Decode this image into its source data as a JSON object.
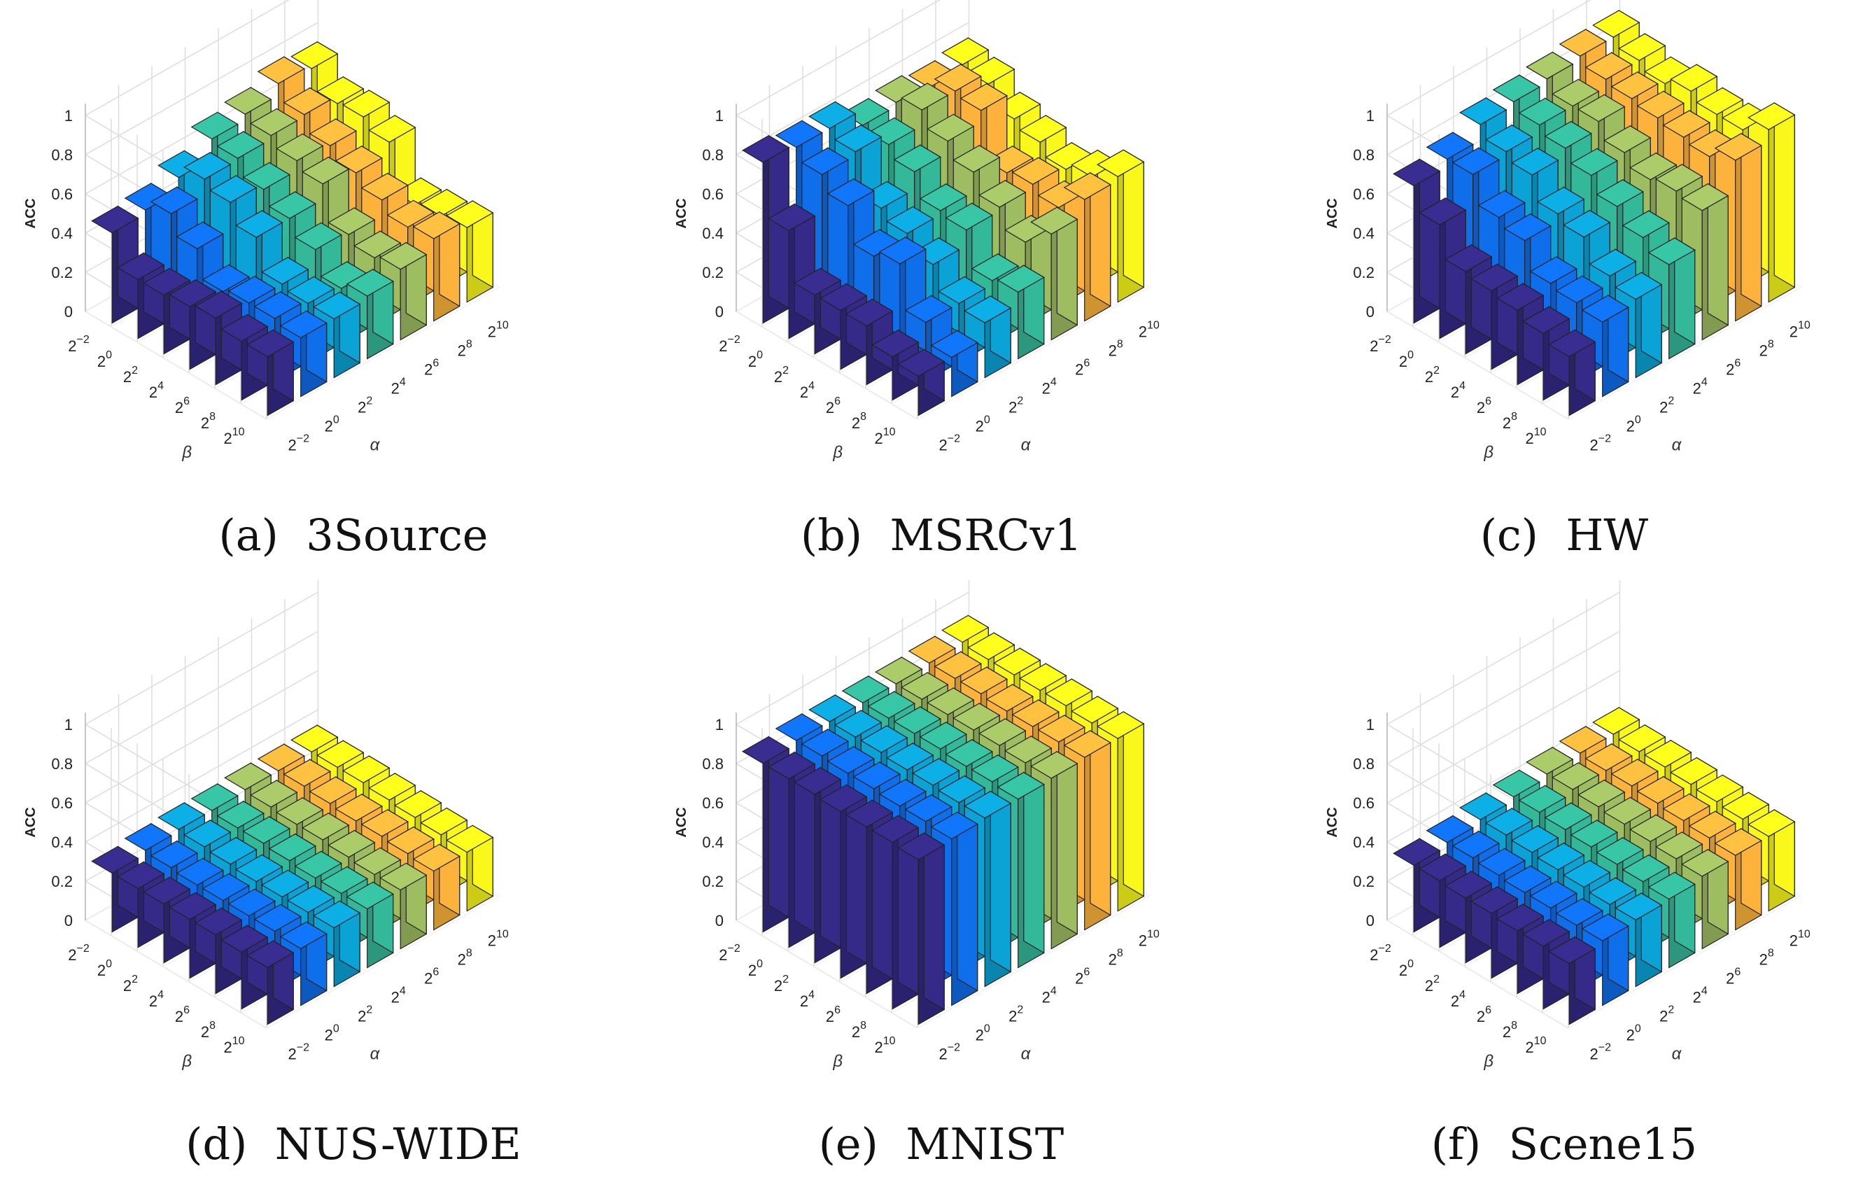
{
  "colors": {
    "palette": [
      "#352a87",
      "#0f6ee9",
      "#0ba3d6",
      "#34b89a",
      "#9ebd61",
      "#fdb33b",
      "#f9f81a"
    ],
    "grid": "#dddddd",
    "axis": "#333333",
    "edge": "#222222"
  },
  "axes_text": {
    "zlabel": "ACC",
    "xlabel": "α",
    "ylabel": "β",
    "ztick_labels": [
      "0",
      "0.2",
      "0.4",
      "0.6",
      "0.8",
      "1"
    ],
    "tick_base": "2",
    "tick_exponents": [
      "−2",
      "0",
      "2",
      "4",
      "6",
      "8",
      "10"
    ]
  },
  "chart_data": [
    {
      "type": "bar3d",
      "caption": "(a)  3Source",
      "title": "3Source",
      "xlabel": "α",
      "ylabel": "β",
      "zlabel": "ACC",
      "alpha": [
        "2^-2",
        "2^0",
        "2^2",
        "2^4",
        "2^6",
        "2^8",
        "2^10"
      ],
      "beta": [
        "2^-2",
        "2^0",
        "2^2",
        "2^4",
        "2^6",
        "2^8",
        "2^10"
      ],
      "zlim": [
        0,
        1
      ],
      "values": [
        [
          0.46,
          0.48,
          0.55,
          0.65,
          0.68,
          0.74,
          0.72
        ],
        [
          0.3,
          0.54,
          0.62,
          0.63,
          0.65,
          0.66,
          0.62
        ],
        [
          0.3,
          0.44,
          0.58,
          0.55,
          0.6,
          0.58,
          0.63
        ],
        [
          0.32,
          0.3,
          0.48,
          0.48,
          0.56,
          0.52,
          0.58
        ],
        [
          0.34,
          0.32,
          0.32,
          0.4,
          0.38,
          0.46,
          0.34
        ],
        [
          0.3,
          0.32,
          0.3,
          0.28,
          0.34,
          0.4,
          0.36
        ],
        [
          0.3,
          0.3,
          0.3,
          0.32,
          0.36,
          0.42,
          0.38
        ]
      ]
    },
    {
      "type": "bar3d",
      "caption": "(b)  MSRCv1",
      "title": "MSRCv1",
      "xlabel": "α",
      "ylabel": "β",
      "zlabel": "ACC",
      "alpha": [
        "2^-2",
        "2^0",
        "2^2",
        "2^4",
        "2^6",
        "2^8",
        "2^10"
      ],
      "beta": [
        "2^-2",
        "2^0",
        "2^2",
        "2^4",
        "2^6",
        "2^8",
        "2^10"
      ],
      "zlim": [
        0,
        1
      ],
      "values": [
        [
          0.82,
          0.8,
          0.8,
          0.72,
          0.74,
          0.72,
          0.74
        ],
        [
          0.55,
          0.74,
          0.76,
          0.7,
          0.78,
          0.78,
          0.72
        ],
        [
          0.3,
          0.66,
          0.55,
          0.64,
          0.7,
          0.76,
          0.62
        ],
        [
          0.3,
          0.48,
          0.5,
          0.52,
          0.62,
          0.52,
          0.58
        ],
        [
          0.3,
          0.52,
          0.42,
          0.5,
          0.52,
          0.54,
          0.52
        ],
        [
          0.22,
          0.3,
          0.3,
          0.32,
          0.42,
          0.5,
          0.56
        ],
        [
          0.2,
          0.2,
          0.28,
          0.34,
          0.54,
          0.62,
          0.64
        ]
      ]
    },
    {
      "type": "bar3d",
      "caption": "(c)  HW",
      "title": "HW",
      "xlabel": "α",
      "ylabel": "β",
      "zlabel": "ACC",
      "alpha": [
        "2^-2",
        "2^0",
        "2^2",
        "2^4",
        "2^6",
        "2^8",
        "2^10"
      ],
      "beta": [
        "2^-2",
        "2^0",
        "2^2",
        "2^4",
        "2^6",
        "2^8",
        "2^10"
      ],
      "zlim": [
        0,
        1
      ],
      "values": [
        [
          0.7,
          0.74,
          0.82,
          0.84,
          0.86,
          0.88,
          0.88
        ],
        [
          0.58,
          0.74,
          0.76,
          0.8,
          0.8,
          0.84,
          0.84
        ],
        [
          0.42,
          0.6,
          0.72,
          0.76,
          0.8,
          0.82,
          0.8
        ],
        [
          0.4,
          0.56,
          0.6,
          0.7,
          0.72,
          0.8,
          0.84
        ],
        [
          0.38,
          0.42,
          0.56,
          0.62,
          0.66,
          0.78,
          0.8
        ],
        [
          0.34,
          0.4,
          0.44,
          0.54,
          0.68,
          0.76,
          0.8
        ],
        [
          0.3,
          0.38,
          0.4,
          0.48,
          0.66,
          0.82,
          0.88
        ]
      ]
    },
    {
      "type": "bar3d",
      "caption": "(d)  NUS-WIDE",
      "title": "NUS-WIDE",
      "xlabel": "α",
      "ylabel": "β",
      "zlabel": "ACC",
      "alpha": [
        "2^-2",
        "2^0",
        "2^2",
        "2^4",
        "2^6",
        "2^8",
        "2^10"
      ],
      "beta": [
        "2^-2",
        "2^0",
        "2^2",
        "2^4",
        "2^6",
        "2^8",
        "2^10"
      ],
      "zlim": [
        0,
        1
      ],
      "values": [
        [
          0.3,
          0.32,
          0.33,
          0.33,
          0.34,
          0.34,
          0.34
        ],
        [
          0.3,
          0.31,
          0.32,
          0.32,
          0.33,
          0.34,
          0.34
        ],
        [
          0.3,
          0.3,
          0.31,
          0.32,
          0.32,
          0.33,
          0.34
        ],
        [
          0.3,
          0.3,
          0.3,
          0.31,
          0.32,
          0.32,
          0.33
        ],
        [
          0.3,
          0.3,
          0.3,
          0.3,
          0.31,
          0.32,
          0.32
        ],
        [
          0.29,
          0.3,
          0.3,
          0.3,
          0.3,
          0.31,
          0.31
        ],
        [
          0.29,
          0.29,
          0.3,
          0.3,
          0.3,
          0.3,
          0.3
        ]
      ]
    },
    {
      "type": "bar3d",
      "caption": "(e)  MNIST",
      "title": "MNIST",
      "xlabel": "α",
      "ylabel": "β",
      "zlabel": "ACC",
      "alpha": [
        "2^-2",
        "2^0",
        "2^2",
        "2^4",
        "2^6",
        "2^8",
        "2^10"
      ],
      "beta": [
        "2^-2",
        "2^0",
        "2^2",
        "2^4",
        "2^6",
        "2^8",
        "2^10"
      ],
      "zlim": [
        0,
        1
      ],
      "values": [
        [
          0.86,
          0.88,
          0.88,
          0.88,
          0.88,
          0.89,
          0.9
        ],
        [
          0.86,
          0.88,
          0.88,
          0.88,
          0.88,
          0.89,
          0.89
        ],
        [
          0.86,
          0.87,
          0.88,
          0.88,
          0.88,
          0.89,
          0.89
        ],
        [
          0.85,
          0.87,
          0.87,
          0.88,
          0.88,
          0.88,
          0.89
        ],
        [
          0.85,
          0.86,
          0.87,
          0.87,
          0.88,
          0.88,
          0.89
        ],
        [
          0.85,
          0.86,
          0.86,
          0.87,
          0.87,
          0.88,
          0.88
        ],
        [
          0.84,
          0.85,
          0.86,
          0.86,
          0.87,
          0.88,
          0.88
        ]
      ]
    },
    {
      "type": "bar3d",
      "caption": "(f)  Scene15",
      "title": "Scene15",
      "xlabel": "α",
      "ylabel": "β",
      "zlabel": "ACC",
      "alpha": [
        "2^-2",
        "2^0",
        "2^2",
        "2^4",
        "2^6",
        "2^8",
        "2^10"
      ],
      "beta": [
        "2^-2",
        "2^0",
        "2^2",
        "2^4",
        "2^6",
        "2^8",
        "2^10"
      ],
      "zlim": [
        0,
        1
      ],
      "values": [
        [
          0.34,
          0.36,
          0.38,
          0.4,
          0.42,
          0.43,
          0.43
        ],
        [
          0.34,
          0.36,
          0.38,
          0.4,
          0.42,
          0.42,
          0.42
        ],
        [
          0.33,
          0.35,
          0.37,
          0.39,
          0.41,
          0.42,
          0.42
        ],
        [
          0.33,
          0.34,
          0.36,
          0.38,
          0.4,
          0.41,
          0.41
        ],
        [
          0.32,
          0.34,
          0.35,
          0.37,
          0.39,
          0.4,
          0.4
        ],
        [
          0.32,
          0.33,
          0.34,
          0.36,
          0.38,
          0.39,
          0.39
        ],
        [
          0.31,
          0.33,
          0.34,
          0.35,
          0.37,
          0.38,
          0.38
        ]
      ]
    }
  ]
}
